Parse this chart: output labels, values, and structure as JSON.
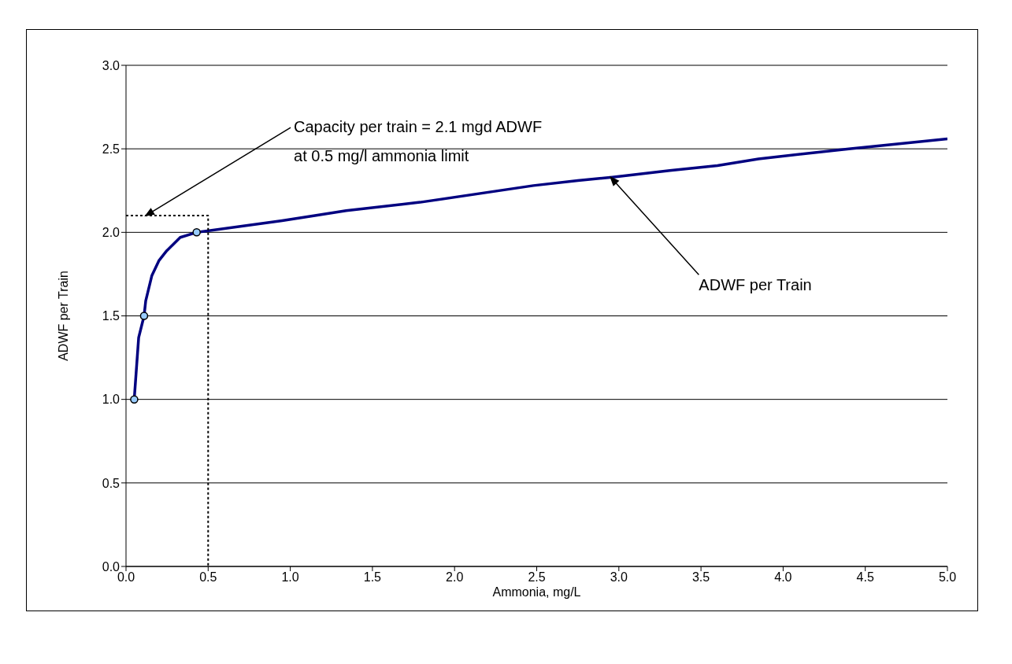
{
  "chart_data": {
    "type": "line",
    "xlabel": "Ammonia, mg/L",
    "ylabel": "ADWF per Train",
    "xlim": [
      0,
      5
    ],
    "ylim": [
      0,
      3
    ],
    "xticks": [
      {
        "value": 0,
        "label": "0.0"
      },
      {
        "value": 0.5,
        "label": "0.5"
      },
      {
        "value": 1,
        "label": "1.0"
      },
      {
        "value": 1.5,
        "label": "1.5"
      },
      {
        "value": 2,
        "label": "2.0"
      },
      {
        "value": 2.5,
        "label": "2.5"
      },
      {
        "value": 3,
        "label": "3.0"
      },
      {
        "value": 3.5,
        "label": "3.5"
      },
      {
        "value": 4,
        "label": "4.0"
      },
      {
        "value": 4.5,
        "label": "4.5"
      },
      {
        "value": 5,
        "label": "5.0"
      }
    ],
    "yticks": [
      {
        "value": 0,
        "label": "0.0"
      },
      {
        "value": 0.5,
        "label": "0.5"
      },
      {
        "value": 1,
        "label": "1.0"
      },
      {
        "value": 1.5,
        "label": "1.5"
      },
      {
        "value": 2,
        "label": "2.0"
      },
      {
        "value": 2.5,
        "label": "2.5"
      },
      {
        "value": 3,
        "label": "3.0"
      }
    ],
    "grid": "y",
    "series": [
      {
        "type": "line",
        "color": "#000080",
        "marker": "none",
        "line_style": "solid",
        "x": [
          0.05,
          0.077,
          0.11,
          0.12,
          0.157,
          0.2,
          0.248,
          0.33,
          0.43,
          0.95,
          1.15,
          1.34,
          1.79,
          2.48,
          2.75,
          2.96,
          3.31,
          3.6,
          3.85,
          4.4,
          5.0
        ],
        "values": [
          1.0,
          1.37,
          1.5,
          1.59,
          1.74,
          1.83,
          1.89,
          1.97,
          2.0,
          2.07,
          2.1,
          2.13,
          2.18,
          2.28,
          2.31,
          2.33,
          2.37,
          2.4,
          2.44,
          2.5,
          2.56
        ]
      },
      {
        "type": "scatter",
        "color": "#99ccff",
        "marker": "circle",
        "x": [
          0.05,
          0.11,
          0.43
        ],
        "values": [
          1.0,
          1.5,
          2.0
        ]
      },
      {
        "type": "line",
        "color": "#000000",
        "marker": "none",
        "line_style": "dotted",
        "x": [
          0,
          0.5,
          0.5
        ],
        "values": [
          2.1,
          2.1,
          0
        ]
      }
    ],
    "annotations": [
      {
        "text": "Capacity per train = 2.1 mgd ADWF\nat 0.5 mg/l ammonia limit",
        "x": 0.12,
        "y": 2.1
      },
      {
        "text": "ADWF per Train",
        "x": 2.95,
        "y": 2.33
      }
    ]
  }
}
